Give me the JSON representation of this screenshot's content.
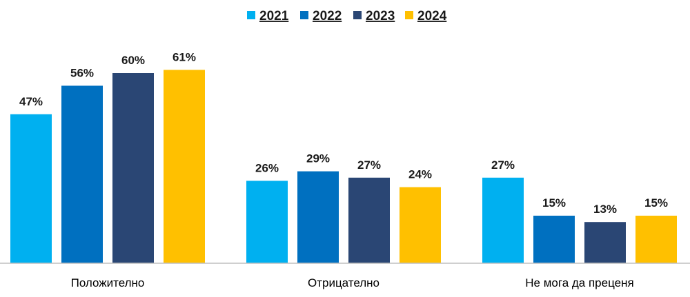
{
  "chart_data": {
    "type": "bar",
    "title": "",
    "xlabel": "",
    "ylabel": "",
    "ylim": [
      0,
      66
    ],
    "grid": false,
    "legend_position": "top-center",
    "categories": [
      "Положително",
      "Отрицателно",
      "Не мога да преценя"
    ],
    "series": [
      {
        "name": "2021",
        "color": "#00b0f0",
        "values": [
          47,
          26,
          27
        ],
        "labels": [
          "47%",
          "26%",
          "27%"
        ]
      },
      {
        "name": "2022",
        "color": "#0070c0",
        "values": [
          56,
          29,
          15
        ],
        "labels": [
          "56%",
          "29%",
          "15%"
        ]
      },
      {
        "name": "2023",
        "color": "#2a4674",
        "values": [
          60,
          27,
          13
        ],
        "labels": [
          "60%",
          "27%",
          "13%"
        ]
      },
      {
        "name": "2024",
        "color": "#ffc000",
        "values": [
          61,
          24,
          15
        ],
        "labels": [
          "61%",
          "24%",
          "15%"
        ]
      }
    ]
  }
}
